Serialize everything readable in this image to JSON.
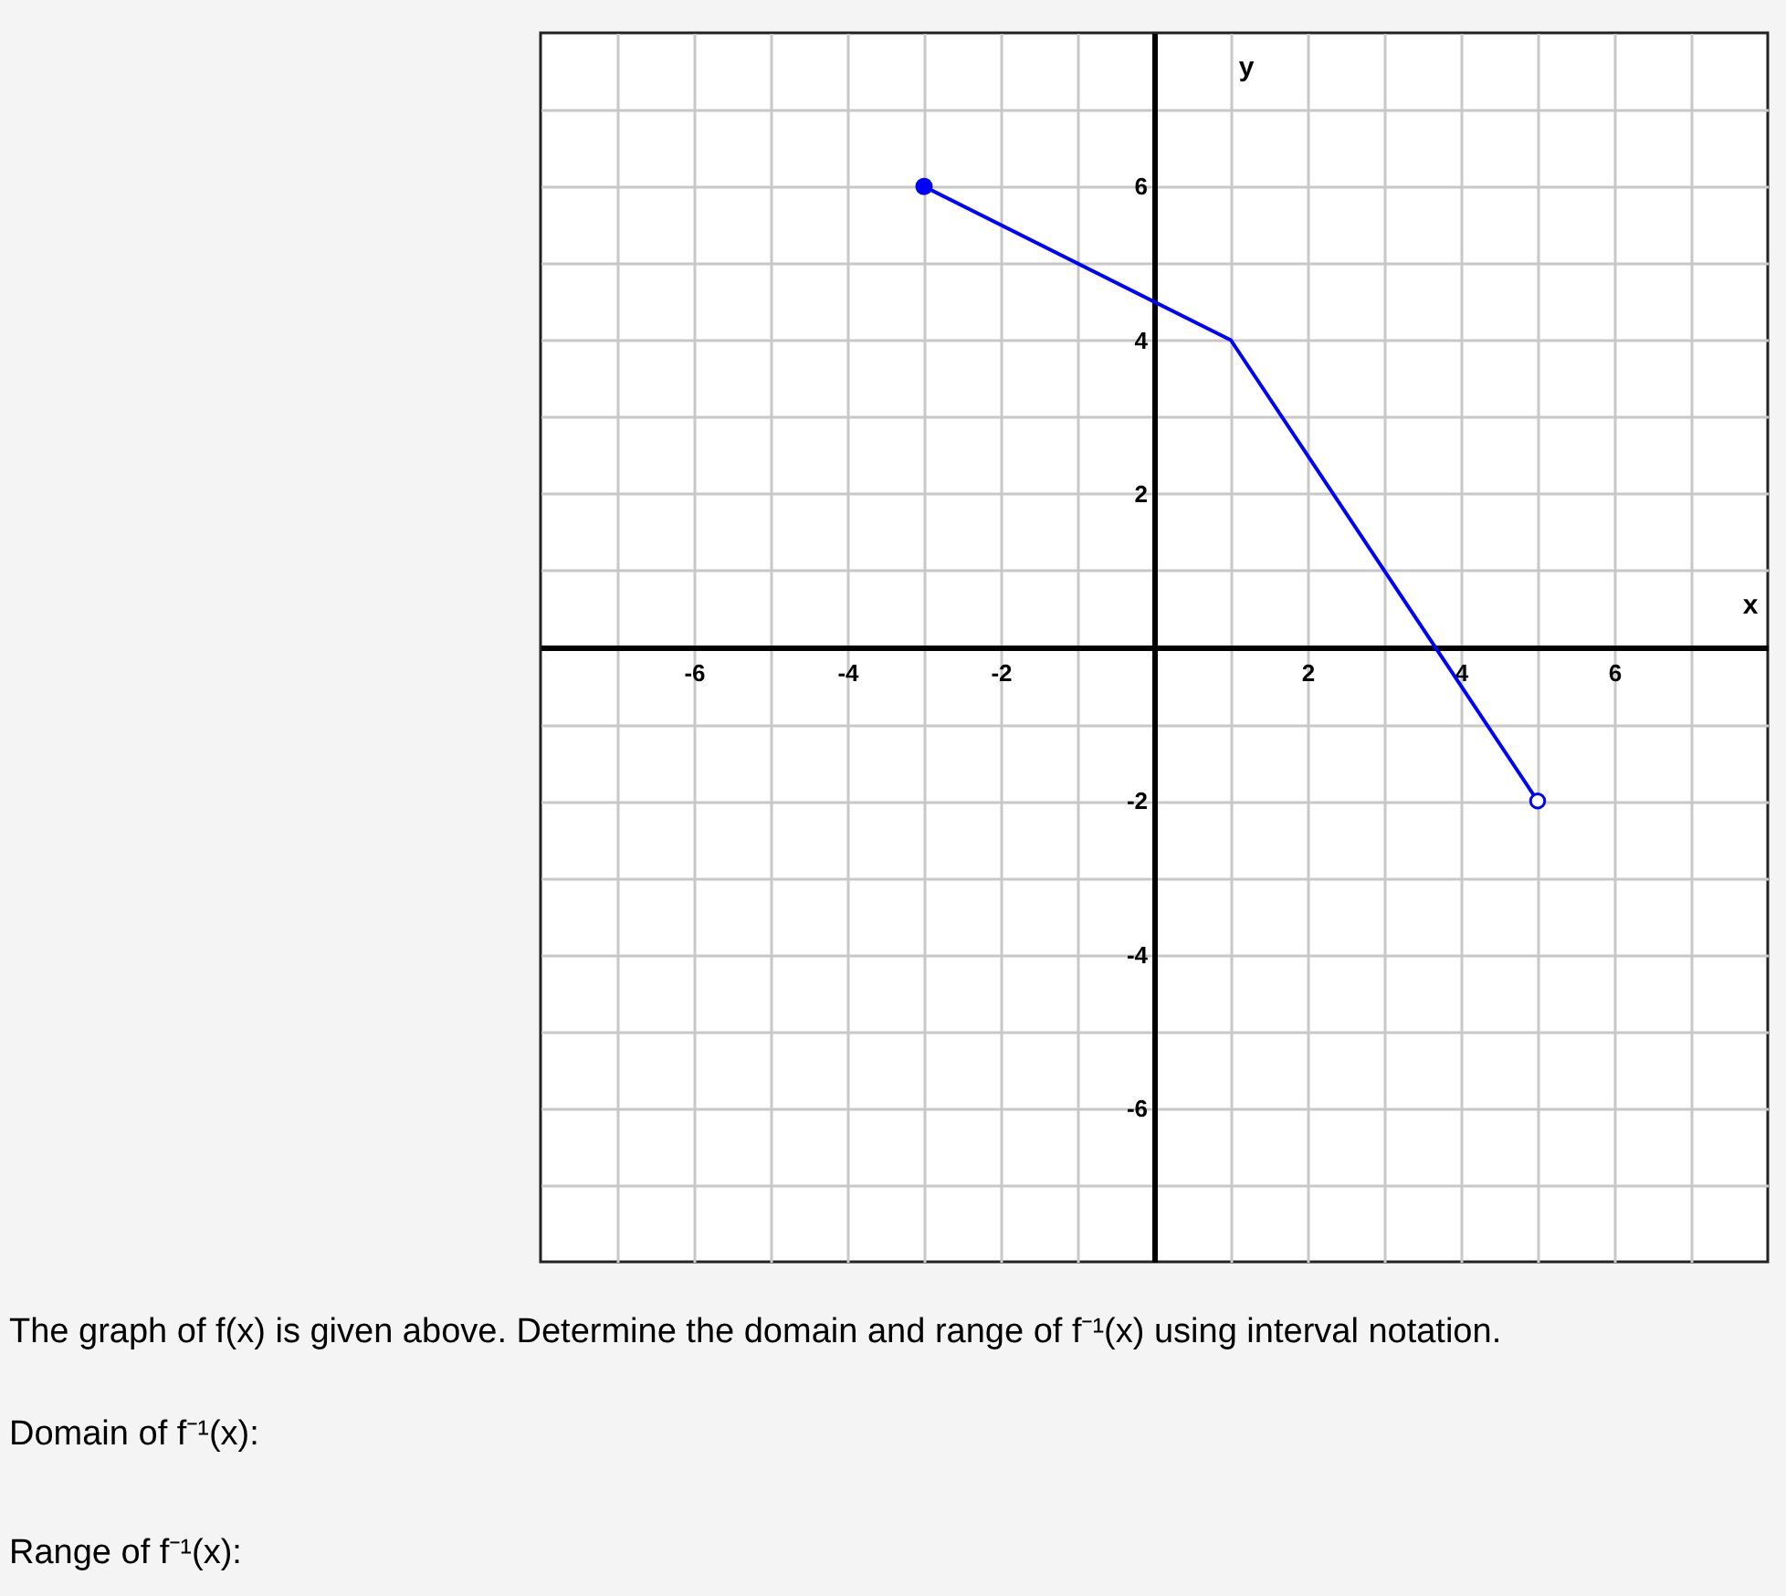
{
  "chart_data": {
    "type": "line",
    "xlabel": "x",
    "ylabel": "y",
    "xlim": [
      -8,
      8
    ],
    "ylim": [
      -8,
      8
    ],
    "xticks": [
      {
        "value": -7,
        "label": null
      },
      -6,
      {
        "value": -5,
        "label": null
      },
      -4,
      {
        "value": -3,
        "label": null
      },
      -2,
      {
        "value": -1,
        "label": null
      },
      {
        "value": 0,
        "label": null
      },
      {
        "value": 1,
        "label": null
      },
      2,
      {
        "value": 3,
        "label": null
      },
      4,
      {
        "value": 5,
        "label": null
      },
      6,
      {
        "value": 7,
        "label": null
      }
    ],
    "yticks": [
      {
        "value": -7,
        "label": null
      },
      -6,
      {
        "value": -5,
        "label": null
      },
      -4,
      {
        "value": -3,
        "label": null
      },
      -2,
      {
        "value": -1,
        "label": null
      },
      {
        "value": 0,
        "label": null
      },
      {
        "value": 1,
        "label": null
      },
      2,
      {
        "value": 3,
        "label": null
      },
      4,
      {
        "value": 5,
        "label": null
      },
      6,
      {
        "value": 7,
        "label": null
      }
    ],
    "grid": true,
    "series": [
      {
        "color": "#0000ff",
        "x": [
          -3,
          1,
          5
        ],
        "values": [
          6,
          4,
          -2
        ],
        "marker": "none",
        "line_style": "solid"
      },
      {
        "type": "scatter",
        "color": "#0000ff",
        "x": [
          -3
        ],
        "values": [
          6
        ],
        "marker": "circle"
      },
      {
        "type": "scatter",
        "color": "#0000ff",
        "x": [
          5
        ],
        "values": [
          -2
        ],
        "marker": "circle-open"
      }
    ],
    "annotations": [
      "The graph of f(x) is given above. Determine the domain and range of f⁻¹(x) using interval notation.",
      "Domain of f⁻¹(x):",
      "Range of f⁻¹(x):"
    ]
  }
}
